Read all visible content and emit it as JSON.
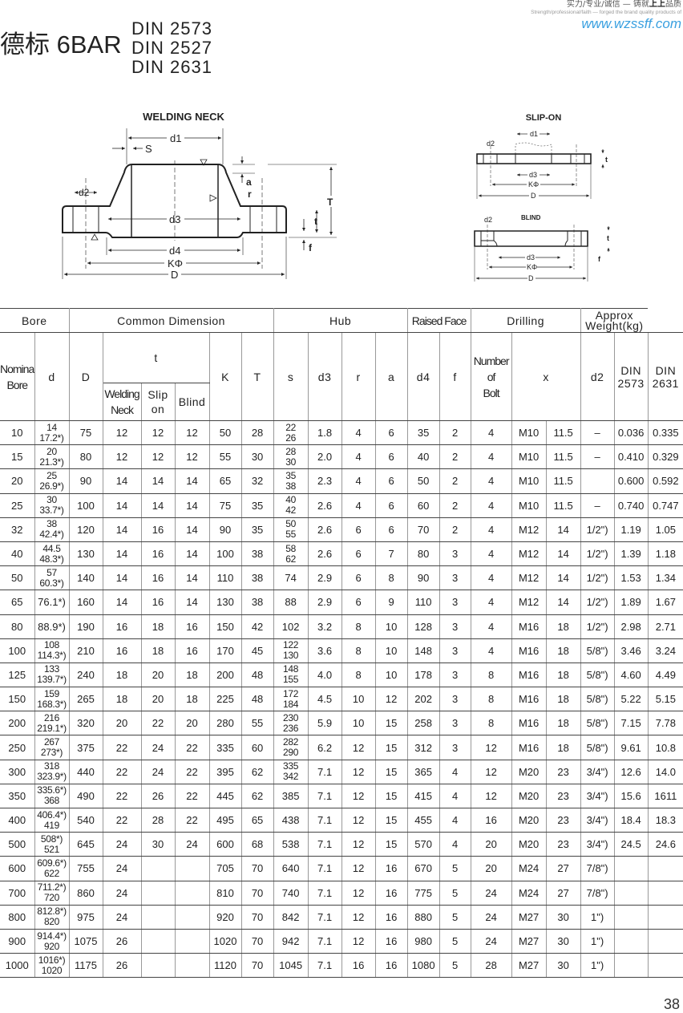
{
  "header": {
    "tagline_cn_a": "实力/专业/诚信 — 铸就",
    "tagline_cn_b": "上上",
    "tagline_cn_c": "品质",
    "tagline_en": "Strength/professional/faith — forged the brand quality products of",
    "website": "www.wzssff.com",
    "title": "德标 6BAR",
    "standards": [
      "DIN 2573",
      "DIN 2527",
      "DIN 2631"
    ]
  },
  "drawings": {
    "welding_neck": {
      "title": "WELDING NECK",
      "d1": "d1",
      "s": "S",
      "d2": "d2",
      "d3": "d3",
      "d4": "d4",
      "k": "KΦ",
      "d": "D",
      "a": "a",
      "r": "r",
      "T": "T",
      "t": "t",
      "f": "f"
    },
    "slip_on": {
      "title": "SLIP-ON",
      "d1": "d1",
      "d2": "d2",
      "d3": "d3",
      "k": "KΦ",
      "d": "D",
      "t": "t"
    },
    "blind": {
      "title": "BLIND",
      "d2": "d2",
      "d3": "d3",
      "k": "KΦ",
      "d": "D",
      "t": "t",
      "f": "f"
    }
  },
  "table": {
    "groups": {
      "bore": "Bore",
      "common": "Common Dimension",
      "hub": "Hub",
      "raised_face": "Raised Face",
      "drilling": "Drilling",
      "weight": "Approx\nWeight(kg)"
    },
    "columns": {
      "nominal_bore": "Nominal\nBore",
      "d": "d",
      "D": "D",
      "t": "t",
      "welding_neck": "Welding\nNeck",
      "slip_on": "Slip\non",
      "blind": "Blind",
      "K": "K",
      "T": "T",
      "s": "s",
      "d3": "d3",
      "r": "r",
      "a": "a",
      "d4": "d4",
      "f": "f",
      "bolts": "Number\nof\nBolt",
      "x": "x",
      "d2": "d2",
      "din2573": "DIN\n2573",
      "din2631": "DIN\n2631"
    },
    "rows": [
      [
        "10",
        "14\n17.2*)",
        "75",
        "12",
        "12",
        "12",
        "50",
        "28",
        "22\n26",
        "1.8",
        "4",
        "6",
        "35",
        "2",
        "4",
        "M10",
        "11.5",
        "–",
        "0.036",
        "0.335"
      ],
      [
        "15",
        "20\n21.3*)",
        "80",
        "12",
        "12",
        "12",
        "55",
        "30",
        "28\n30",
        "2.0",
        "4",
        "6",
        "40",
        "2",
        "4",
        "M10",
        "11.5",
        "–",
        "0.410",
        "0.329"
      ],
      [
        "20",
        "25\n26.9*)",
        "90",
        "14",
        "14",
        "14",
        "65",
        "32",
        "35\n38",
        "2.3",
        "4",
        "6",
        "50",
        "2",
        "4",
        "M10",
        "11.5",
        "",
        "0.600",
        "0.592"
      ],
      [
        "25",
        "30\n33.7*)",
        "100",
        "14",
        "14",
        "14",
        "75",
        "35",
        "40\n42",
        "2.6",
        "4",
        "6",
        "60",
        "2",
        "4",
        "M10",
        "11.5",
        "–",
        "0.740",
        "0.747"
      ],
      [
        "32",
        "38\n42.4*)",
        "120",
        "14",
        "16",
        "14",
        "90",
        "35",
        "50\n55",
        "2.6",
        "6",
        "6",
        "70",
        "2",
        "4",
        "M12",
        "14",
        "1/2\")",
        "1.19",
        "1.05"
      ],
      [
        "40",
        "44.5\n48.3*)",
        "130",
        "14",
        "16",
        "14",
        "100",
        "38",
        "58\n62",
        "2.6",
        "6",
        "7",
        "80",
        "3",
        "4",
        "M12",
        "14",
        "1/2\")",
        "1.39",
        "1.18"
      ],
      [
        "50",
        "57\n60.3*)",
        "140",
        "14",
        "16",
        "14",
        "110",
        "38",
        "74",
        "2.9",
        "6",
        "8",
        "90",
        "3",
        "4",
        "M12",
        "14",
        "1/2\")",
        "1.53",
        "1.34"
      ],
      [
        "65",
        "76.1*)",
        "160",
        "14",
        "16",
        "14",
        "130",
        "38",
        "88",
        "2.9",
        "6",
        "9",
        "110",
        "3",
        "4",
        "M12",
        "14",
        "1/2\")",
        "1.89",
        "1.67"
      ],
      [
        "80",
        "88.9*)",
        "190",
        "16",
        "18",
        "16",
        "150",
        "42",
        "102",
        "3.2",
        "8",
        "10",
        "128",
        "3",
        "4",
        "M16",
        "18",
        "1/2\")",
        "2.98",
        "2.71"
      ],
      [
        "100",
        "108\n114.3*)",
        "210",
        "16",
        "18",
        "16",
        "170",
        "45",
        "122\n130",
        "3.6",
        "8",
        "10",
        "148",
        "3",
        "4",
        "M16",
        "18",
        "5/8\")",
        "3.46",
        "3.24"
      ],
      [
        "125",
        "133\n139.7*)",
        "240",
        "18",
        "20",
        "18",
        "200",
        "48",
        "148\n155",
        "4.0",
        "8",
        "10",
        "178",
        "3",
        "8",
        "M16",
        "18",
        "5/8\")",
        "4.60",
        "4.49"
      ],
      [
        "150",
        "159\n168.3*)",
        "265",
        "18",
        "20",
        "18",
        "225",
        "48",
        "172\n184",
        "4.5",
        "10",
        "12",
        "202",
        "3",
        "8",
        "M16",
        "18",
        "5/8\")",
        "5.22",
        "5.15"
      ],
      [
        "200",
        "216\n219.1*)",
        "320",
        "20",
        "22",
        "20",
        "280",
        "55",
        "230\n236",
        "5.9",
        "10",
        "15",
        "258",
        "3",
        "8",
        "M16",
        "18",
        "5/8\")",
        "7.15",
        "7.78"
      ],
      [
        "250",
        "267\n273*)",
        "375",
        "22",
        "24",
        "22",
        "335",
        "60",
        "282\n290",
        "6.2",
        "12",
        "15",
        "312",
        "3",
        "12",
        "M16",
        "18",
        "5/8\")",
        "9.61",
        "10.8"
      ],
      [
        "300",
        "318\n323.9*)",
        "440",
        "22",
        "24",
        "22",
        "395",
        "62",
        "335\n342",
        "7.1",
        "12",
        "15",
        "365",
        "4",
        "12",
        "M20",
        "23",
        "3/4\")",
        "12.6",
        "14.0"
      ],
      [
        "350",
        "335.6*)\n368",
        "490",
        "22",
        "26",
        "22",
        "445",
        "62",
        "385",
        "7.1",
        "12",
        "15",
        "415",
        "4",
        "12",
        "M20",
        "23",
        "3/4\")",
        "15.6",
        "1611"
      ],
      [
        "400",
        "406.4*)\n419",
        "540",
        "22",
        "28",
        "22",
        "495",
        "65",
        "438",
        "7.1",
        "12",
        "15",
        "455",
        "4",
        "16",
        "M20",
        "23",
        "3/4\")",
        "18.4",
        "18.3"
      ],
      [
        "500",
        "508*)\n521",
        "645",
        "24",
        "30",
        "24",
        "600",
        "68",
        "538",
        "7.1",
        "12",
        "15",
        "570",
        "4",
        "20",
        "M20",
        "23",
        "3/4\")",
        "24.5",
        "24.6"
      ],
      [
        "600",
        "609.6*)\n622",
        "755",
        "24",
        "",
        "",
        "705",
        "70",
        "640",
        "7.1",
        "12",
        "16",
        "670",
        "5",
        "20",
        "M24",
        "27",
        "7/8\")",
        "",
        ""
      ],
      [
        "700",
        "711.2*)\n720",
        "860",
        "24",
        "",
        "",
        "810",
        "70",
        "740",
        "7.1",
        "12",
        "16",
        "775",
        "5",
        "24",
        "M24",
        "27",
        "7/8\")",
        "",
        ""
      ],
      [
        "800",
        "812.8*)\n820",
        "975",
        "24",
        "",
        "",
        "920",
        "70",
        "842",
        "7.1",
        "12",
        "16",
        "880",
        "5",
        "24",
        "M27",
        "30",
        "1\")",
        "",
        ""
      ],
      [
        "900",
        "914.4*)\n920",
        "1075",
        "26",
        "",
        "",
        "1020",
        "70",
        "942",
        "7.1",
        "12",
        "16",
        "980",
        "5",
        "24",
        "M27",
        "30",
        "1\")",
        "",
        ""
      ],
      [
        "1000",
        "1016*)\n1020",
        "1175",
        "26",
        "",
        "",
        "1120",
        "70",
        "1045",
        "7.1",
        "16",
        "16",
        "1080",
        "5",
        "28",
        "M27",
        "30",
        "1\")",
        "",
        ""
      ]
    ]
  },
  "page_number": "38",
  "colors": {
    "website": "#3aa0e0",
    "text": "#222222"
  }
}
